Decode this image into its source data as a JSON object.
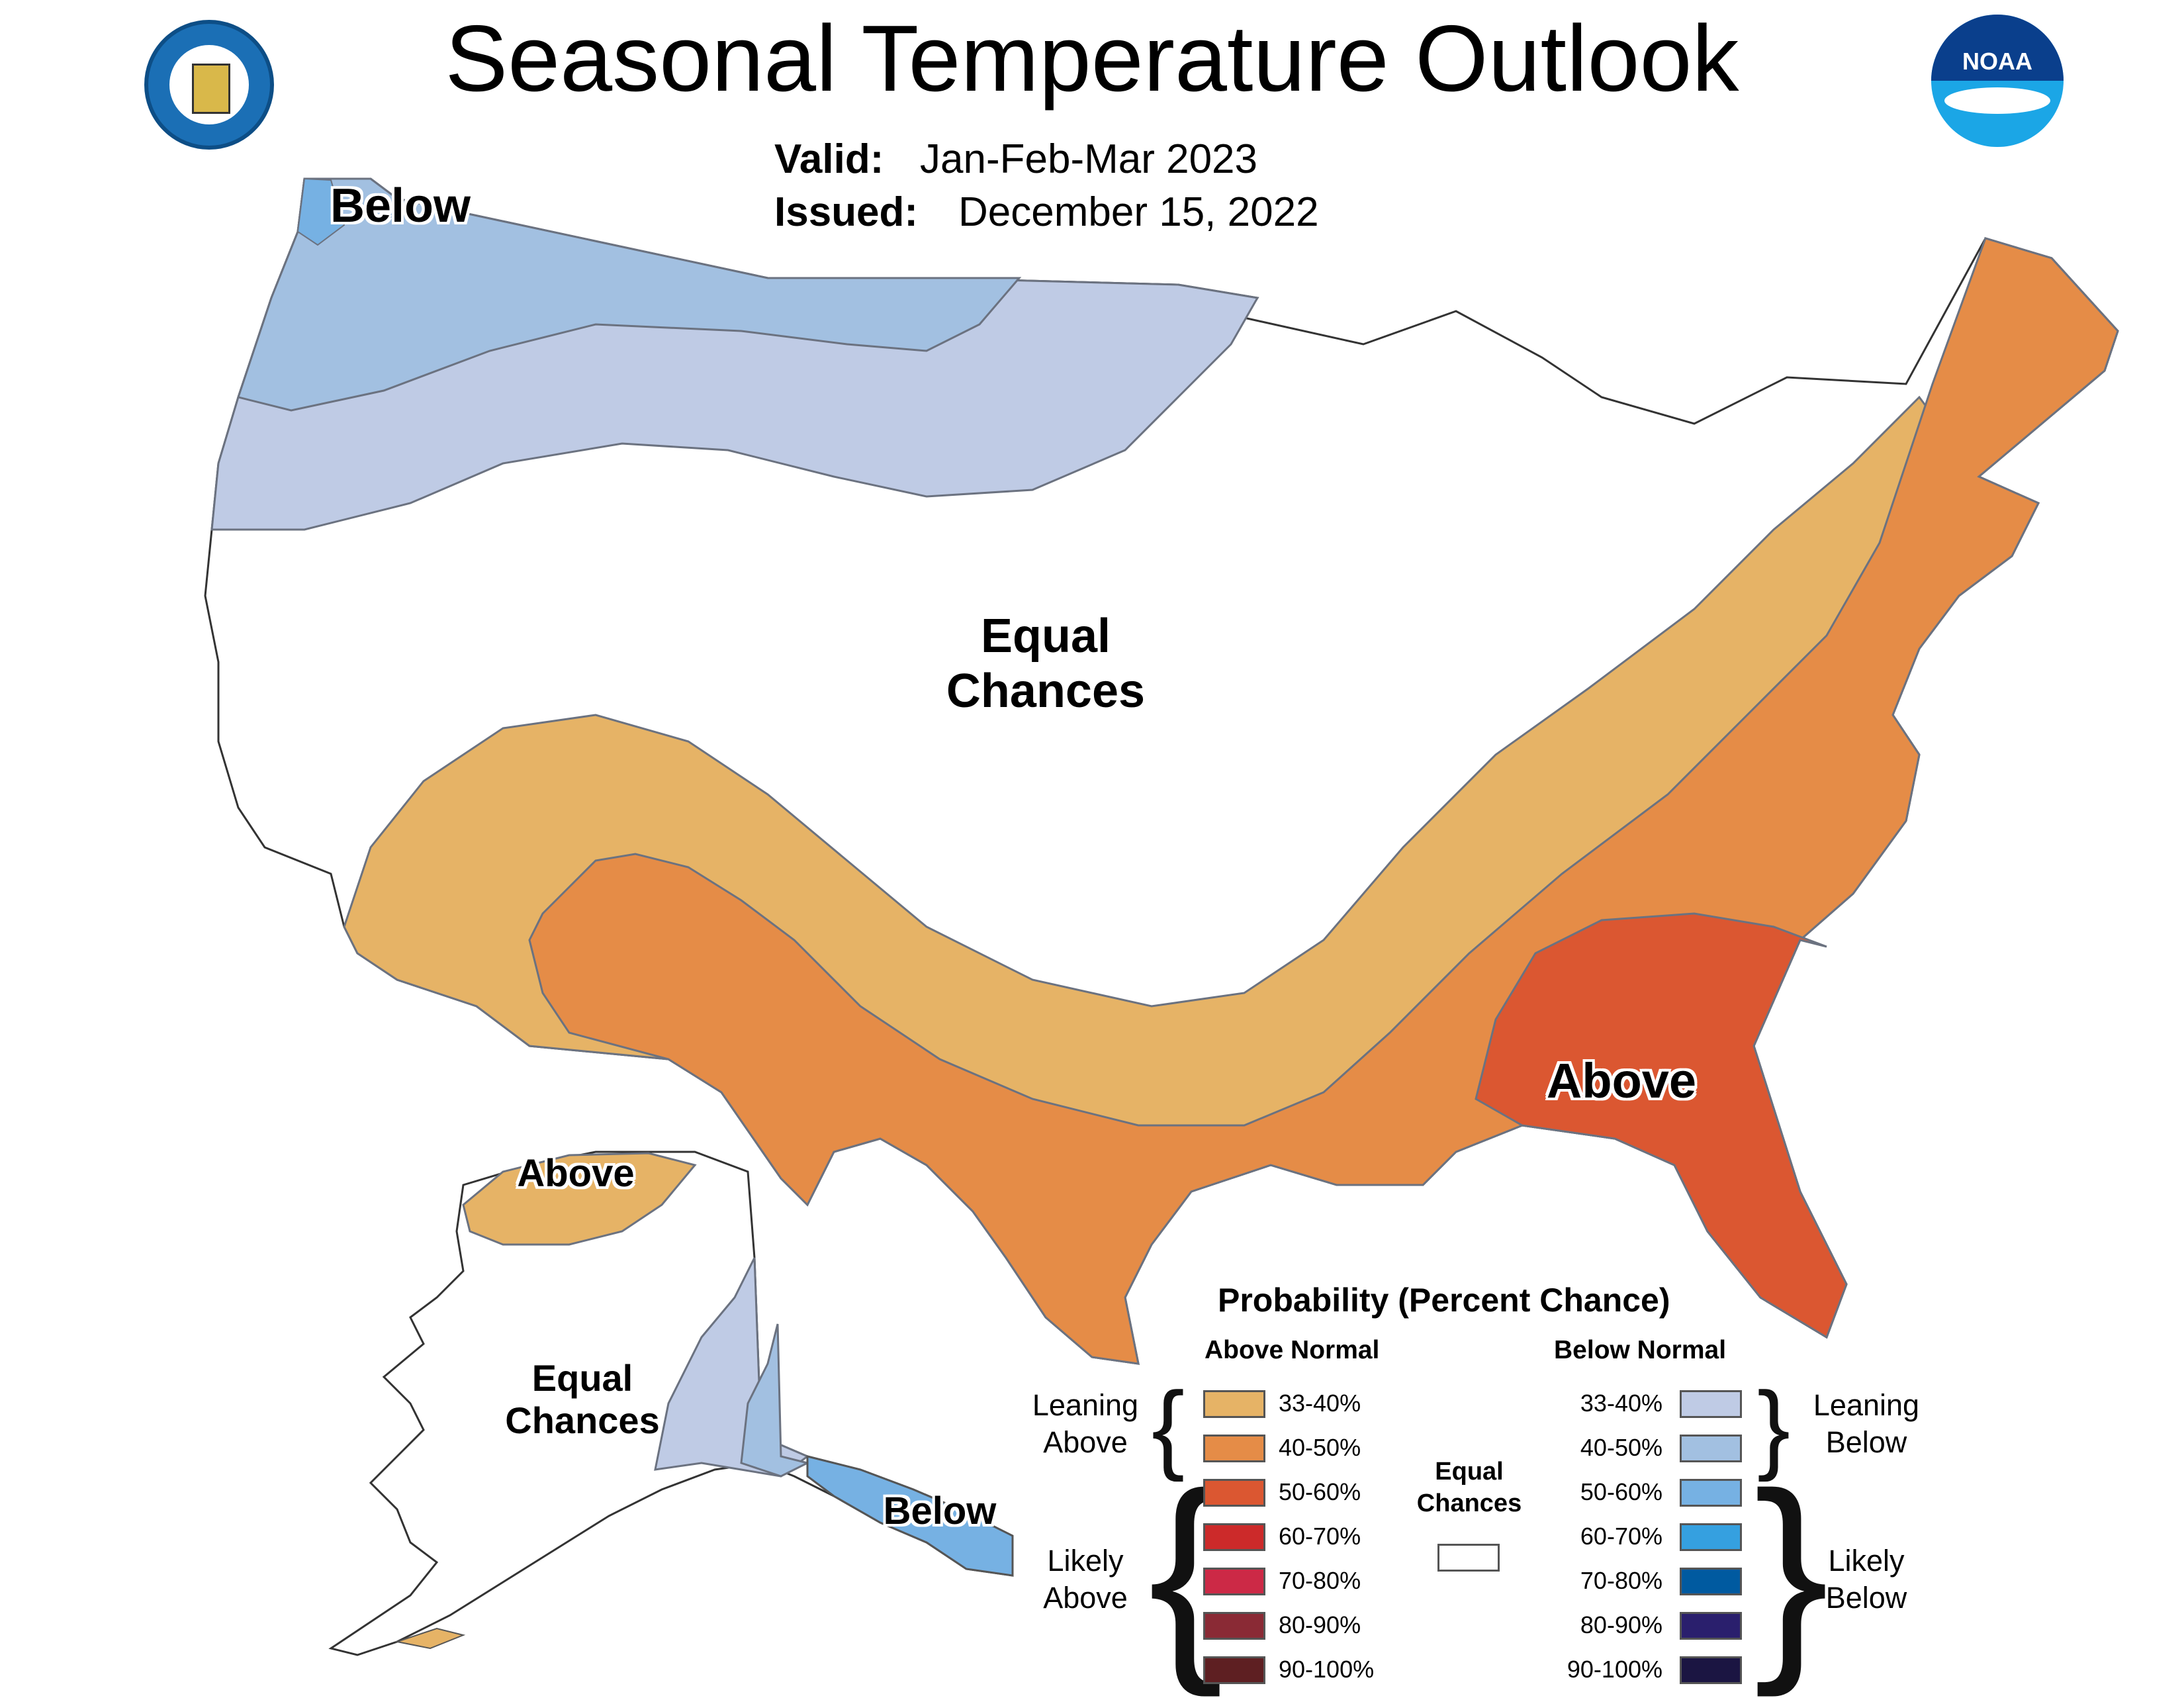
{
  "header": {
    "title": "Seasonal Temperature Outlook",
    "valid_label": "Valid:",
    "valid_value": "Jan-Feb-Mar 2023",
    "issued_label": "Issued:",
    "issued_value": "December 15, 2022"
  },
  "logos": {
    "commerce_seal": "department-of-commerce-seal",
    "noaa": "NOAA"
  },
  "map_labels": {
    "conus_below": "Below",
    "conus_equal_chances": "Equal Chances",
    "conus_above": "Above",
    "alaska_above": "Above",
    "alaska_equal_chances": "Equal Chances",
    "alaska_below": "Below"
  },
  "legend": {
    "title": "Probability (Percent Chance)",
    "above_header": "Above Normal",
    "below_header": "Below Normal",
    "equal_chances": "Equal Chances",
    "leaning_above": "Leaning Above",
    "likely_above": "Likely Above",
    "leaning_below": "Leaning Below",
    "likely_below": "Likely Below",
    "above_items": [
      {
        "range": "33-40%",
        "color": "#e6b366"
      },
      {
        "range": "40-50%",
        "color": "#e58c47"
      },
      {
        "range": "50-60%",
        "color": "#db5731"
      },
      {
        "range": "60-70%",
        "color": "#cc2a2a"
      },
      {
        "range": "70-80%",
        "color": "#cc2946"
      },
      {
        "range": "80-90%",
        "color": "#8a2a35"
      },
      {
        "range": "90-100%",
        "color": "#5e1f22"
      }
    ],
    "below_items": [
      {
        "range": "33-40%",
        "color": "#bfcbe5"
      },
      {
        "range": "40-50%",
        "color": "#a2c0e1"
      },
      {
        "range": "50-60%",
        "color": "#76b1e3"
      },
      {
        "range": "60-70%",
        "color": "#35a0e0"
      },
      {
        "range": "70-80%",
        "color": "#005aa0"
      },
      {
        "range": "80-90%",
        "color": "#2a1f6d"
      },
      {
        "range": "90-100%",
        "color": "#1b1542"
      }
    ],
    "equal_chances_color": "#ffffff"
  },
  "colors": {
    "state_border": "#333333",
    "contour": "#6b7280"
  }
}
